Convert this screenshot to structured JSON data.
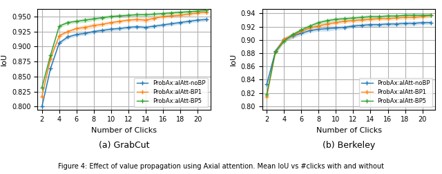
{
  "chart_data": [
    {
      "type": "line",
      "subtitle": "(a) GrabCut",
      "xlabel": "Number of Clicks",
      "ylabel": "IoU",
      "x": [
        2,
        3,
        4,
        5,
        6,
        7,
        8,
        9,
        10,
        11,
        12,
        13,
        14,
        15,
        16,
        17,
        18,
        19,
        20,
        21
      ],
      "xlim": [
        1.5,
        21.5
      ],
      "xticks": [
        2,
        4,
        6,
        8,
        10,
        12,
        14,
        16,
        18,
        20
      ],
      "ylim": [
        0.795,
        0.963
      ],
      "yticks": [
        {
          "value": 0.8,
          "label": "0.800"
        },
        0.825,
        {
          "value": 0.85,
          "label": "0.850"
        },
        0.875,
        {
          "value": 0.9,
          "label": "0.900"
        },
        0.925,
        {
          "value": 0.95,
          "label": "0.950"
        }
      ],
      "grid": true,
      "legend": "lower right",
      "marker": "+",
      "series": [
        {
          "name": "ProbAx:alAtt-noBP",
          "color": "#1f77b4",
          "values": [
            0.8,
            0.864,
            0.906,
            0.916,
            0.92,
            0.922,
            0.925,
            0.927,
            0.929,
            0.93,
            0.932,
            0.933,
            0.932,
            0.934,
            0.936,
            0.938,
            0.94,
            0.942,
            0.944,
            0.945
          ],
          "errors": [
            0.003,
            0.004,
            0.003,
            0.003,
            0.003,
            0.003,
            0.003,
            0.003,
            0.003,
            0.003,
            0.003,
            0.003,
            0.003,
            0.003,
            0.003,
            0.003,
            0.003,
            0.003,
            0.003,
            0.003
          ]
        },
        {
          "name": "ProbAx:alAtt-BP1",
          "color": "#ff7f0e",
          "values": [
            0.817,
            0.88,
            0.918,
            0.925,
            0.93,
            0.932,
            0.935,
            0.937,
            0.94,
            0.942,
            0.944,
            0.945,
            0.944,
            0.947,
            0.95,
            0.951,
            0.952,
            0.954,
            0.956,
            0.957
          ],
          "errors": [
            0.003,
            0.004,
            0.003,
            0.003,
            0.003,
            0.004,
            0.004,
            0.003,
            0.003,
            0.003,
            0.003,
            0.003,
            0.004,
            0.003,
            0.003,
            0.003,
            0.003,
            0.003,
            0.003,
            0.003
          ]
        },
        {
          "name": "ProbAx:alAtt-BP5",
          "color": "#2ca02c",
          "values": [
            0.832,
            0.886,
            0.934,
            0.94,
            0.942,
            0.944,
            0.946,
            0.948,
            0.95,
            0.951,
            0.952,
            0.953,
            0.953,
            0.954,
            0.955,
            0.956,
            0.957,
            0.958,
            0.959,
            0.96
          ],
          "errors": [
            0.004,
            0.004,
            0.003,
            0.003,
            0.003,
            0.004,
            0.003,
            0.003,
            0.003,
            0.003,
            0.003,
            0.003,
            0.003,
            0.003,
            0.003,
            0.003,
            0.003,
            0.003,
            0.003,
            0.003
          ]
        }
      ]
    },
    {
      "type": "line",
      "subtitle": "(b) Berkeley",
      "xlabel": "Number of Clicks",
      "ylabel": "IoU",
      "x": [
        2,
        3,
        4,
        5,
        6,
        7,
        8,
        9,
        10,
        11,
        12,
        13,
        14,
        15,
        16,
        17,
        18,
        19,
        20,
        21
      ],
      "xlim": [
        1.5,
        21.5
      ],
      "xticks": [
        2,
        4,
        6,
        8,
        10,
        12,
        14,
        16,
        18,
        20
      ],
      "ylim": [
        0.795,
        0.947
      ],
      "yticks": [
        {
          "value": 0.8,
          "label": "0.80"
        },
        0.82,
        0.84,
        0.86,
        0.88,
        {
          "value": 0.9,
          "label": "0.90"
        },
        0.92,
        0.94
      ],
      "grid": true,
      "legend": "lower right",
      "marker": "+",
      "series": [
        {
          "name": "ProbAx:alAtt-noBP",
          "color": "#1f77b4",
          "values": [
            0.833,
            0.883,
            0.901,
            0.906,
            0.91,
            0.914,
            0.916,
            0.917,
            0.918,
            0.919,
            0.921,
            0.922,
            0.923,
            0.923,
            0.924,
            0.924,
            0.925,
            0.925,
            0.926,
            0.926
          ],
          "errors": [
            0.004,
            0.004,
            0.003,
            0.004,
            0.003,
            0.003,
            0.003,
            0.004,
            0.003,
            0.003,
            0.003,
            0.003,
            0.003,
            0.003,
            0.003,
            0.003,
            0.003,
            0.003,
            0.003,
            0.003
          ]
        },
        {
          "name": "ProbAx:alAtt-BP1",
          "color": "#ff7f0e",
          "values": [
            0.815,
            0.882,
            0.901,
            0.907,
            0.913,
            0.918,
            0.921,
            0.924,
            0.926,
            0.928,
            0.929,
            0.93,
            0.931,
            0.932,
            0.932,
            0.933,
            0.934,
            0.934,
            0.935,
            0.937
          ],
          "errors": [
            0.004,
            0.003,
            0.003,
            0.004,
            0.003,
            0.003,
            0.003,
            0.003,
            0.003,
            0.003,
            0.003,
            0.003,
            0.003,
            0.003,
            0.003,
            0.003,
            0.003,
            0.003,
            0.003,
            0.003
          ]
        },
        {
          "name": "ProbAx:alAtt-BP5",
          "color": "#2ca02c",
          "values": [
            0.818,
            0.882,
            0.898,
            0.908,
            0.915,
            0.921,
            0.926,
            0.929,
            0.931,
            0.932,
            0.933,
            0.934,
            0.935,
            0.935,
            0.936,
            0.936,
            0.937,
            0.937,
            0.937,
            0.937
          ],
          "errors": [
            0.004,
            0.003,
            0.003,
            0.003,
            0.003,
            0.003,
            0.003,
            0.003,
            0.003,
            0.003,
            0.003,
            0.003,
            0.003,
            0.003,
            0.003,
            0.003,
            0.003,
            0.003,
            0.003,
            0.003
          ]
        }
      ]
    }
  ],
  "caption": "Figure 4: Effect of value propagation using Axial attention. Mean IoU vs #clicks with and without"
}
